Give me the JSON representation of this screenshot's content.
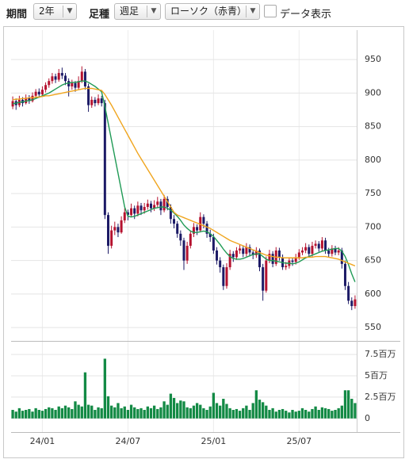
{
  "toolbar": {
    "period_label": "期間",
    "period": "2年",
    "ashi_label": "足種",
    "ashi": "週足",
    "chart_style": "ローソク（赤青）",
    "data_display": "データ表示"
  },
  "chart_data": [
    {
      "type": "candlestick",
      "categories": [
        null,
        null,
        null,
        null,
        null,
        null,
        null,
        null,
        null,
        "24/01",
        null,
        null,
        null,
        null,
        null,
        null,
        null,
        null,
        null,
        null,
        null,
        null,
        null,
        null,
        null,
        null,
        null,
        null,
        null,
        null,
        null,
        null,
        null,
        null,
        null,
        "24/07",
        null,
        null,
        null,
        null,
        null,
        null,
        null,
        null,
        null,
        null,
        null,
        null,
        null,
        null,
        null,
        null,
        null,
        null,
        null,
        null,
        null,
        null,
        null,
        null,
        null,
        "25/01",
        null,
        null,
        null,
        null,
        null,
        null,
        null,
        null,
        null,
        null,
        null,
        null,
        null,
        null,
        null,
        null,
        null,
        null,
        null,
        null,
        null,
        null,
        null,
        null,
        null,
        "25/07",
        null,
        null,
        null,
        null,
        null,
        null,
        null,
        null,
        null,
        null,
        null,
        null,
        null,
        null,
        null,
        null,
        null
      ],
      "open": [
        880,
        888,
        882,
        890,
        885,
        893,
        888,
        896,
        902,
        898,
        905,
        912,
        918,
        925,
        920,
        930,
        926,
        918,
        910,
        915,
        908,
        918,
        932,
        910,
        882,
        890,
        885,
        892,
        885,
        718,
        672,
        695,
        700,
        692,
        710,
        722,
        718,
        728,
        720,
        732,
        725,
        730,
        735,
        728,
        733,
        738,
        725,
        742,
        730,
        712,
        705,
        690,
        680,
        650,
        672,
        690,
        700,
        695,
        715,
        705,
        690,
        685,
        665,
        650,
        640,
        612,
        640,
        660,
        655,
        665,
        668,
        660,
        670,
        662,
        658,
        665,
        640,
        605,
        650,
        660,
        645,
        665,
        655,
        640,
        642,
        650,
        648,
        655,
        662,
        665,
        670,
        660,
        672,
        675,
        668,
        680,
        665,
        660,
        668,
        662,
        665,
        645,
        612,
        590,
        582
      ],
      "high": [
        895,
        892,
        896,
        894,
        898,
        897,
        901,
        906,
        907,
        910,
        916,
        922,
        930,
        929,
        936,
        938,
        930,
        922,
        920,
        918,
        925,
        940,
        936,
        914,
        895,
        894,
        898,
        896,
        890,
        722,
        702,
        708,
        705,
        716,
        728,
        726,
        735,
        732,
        738,
        736,
        736,
        741,
        739,
        740,
        745,
        742,
        748,
        746,
        734,
        718,
        709,
        695,
        684,
        678,
        695,
        706,
        704,
        722,
        719,
        709,
        696,
        690,
        670,
        655,
        644,
        646,
        666,
        664,
        670,
        674,
        672,
        676,
        674,
        666,
        670,
        668,
        645,
        656,
        666,
        664,
        670,
        669,
        659,
        648,
        655,
        654,
        660,
        667,
        670,
        676,
        674,
        678,
        680,
        679,
        685,
        684,
        669,
        673,
        672,
        670,
        669,
        650,
        618,
        595,
        598
      ],
      "low": [
        876,
        875,
        879,
        880,
        883,
        884,
        886,
        892,
        893,
        895,
        901,
        908,
        914,
        915,
        917,
        921,
        912,
        895,
        905,
        902,
        905,
        915,
        905,
        872,
        878,
        880,
        882,
        880,
        712,
        660,
        668,
        688,
        685,
        690,
        706,
        710,
        715,
        712,
        716,
        718,
        720,
        726,
        722,
        724,
        729,
        718,
        722,
        725,
        705,
        698,
        684,
        672,
        636,
        645,
        668,
        685,
        688,
        692,
        698,
        684,
        678,
        660,
        644,
        632,
        606,
        608,
        636,
        648,
        651,
        660,
        655,
        656,
        656,
        652,
        654,
        634,
        590,
        602,
        646,
        640,
        642,
        650,
        636,
        636,
        638,
        642,
        644,
        651,
        658,
        661,
        656,
        656,
        668,
        663,
        664,
        660,
        655,
        656,
        658,
        658,
        638,
        606,
        585,
        576,
        578
      ],
      "close": [
        888,
        882,
        890,
        885,
        893,
        888,
        896,
        902,
        898,
        905,
        912,
        918,
        925,
        920,
        930,
        926,
        918,
        910,
        915,
        908,
        918,
        932,
        910,
        882,
        890,
        885,
        892,
        885,
        718,
        672,
        695,
        700,
        692,
        710,
        722,
        718,
        728,
        720,
        732,
        725,
        730,
        735,
        728,
        733,
        738,
        725,
        742,
        730,
        712,
        705,
        690,
        680,
        650,
        672,
        690,
        700,
        695,
        715,
        705,
        690,
        685,
        665,
        650,
        640,
        612,
        640,
        660,
        655,
        665,
        668,
        660,
        670,
        662,
        658,
        665,
        640,
        605,
        650,
        660,
        645,
        665,
        655,
        640,
        642,
        650,
        648,
        655,
        662,
        665,
        670,
        660,
        672,
        675,
        668,
        680,
        665,
        660,
        668,
        662,
        665,
        645,
        612,
        590,
        582,
        592
      ],
      "up_color": "#b5122f",
      "down_color": "#1c1a66",
      "series": [
        {
          "color": "#1f9a55",
          "values": [
            884,
            885,
            886,
            887,
            888,
            889,
            890,
            892,
            894,
            896,
            898,
            900,
            903,
            906,
            909,
            912,
            914,
            915,
            916,
            916,
            917,
            918,
            918,
            916,
            913,
            910,
            906,
            902,
            880,
            855,
            830,
            805,
            780,
            755,
            730,
            716,
            715,
            716,
            718,
            720,
            722,
            724,
            726,
            728,
            729,
            730,
            730,
            728,
            725,
            721,
            716,
            710,
            703,
            698,
            694,
            692,
            692,
            693,
            694,
            693,
            690,
            686,
            680,
            674,
            667,
            661,
            656,
            653,
            652,
            652,
            653,
            655,
            657,
            659,
            660,
            660,
            656,
            652,
            650,
            650,
            649,
            648,
            647,
            646,
            646,
            645,
            646,
            648,
            651,
            654,
            656,
            658,
            660,
            662,
            664,
            665,
            666,
            667,
            668,
            668,
            664,
            656,
            644,
            630,
            618
          ]
        },
        {
          "color": "#f0a51e",
          "values": [
            890,
            891,
            891,
            892,
            892,
            893,
            893,
            894,
            894,
            895,
            896,
            896,
            897,
            898,
            899,
            900,
            901,
            902,
            903,
            904,
            905,
            906,
            907,
            907,
            907,
            906,
            905,
            904,
            898,
            890,
            882,
            873,
            864,
            855,
            846,
            837,
            828,
            819,
            810,
            802,
            794,
            786,
            778,
            770,
            762,
            754,
            746,
            738,
            730,
            722,
            718,
            716,
            714,
            712,
            710,
            708,
            706,
            704,
            702,
            700,
            698,
            695,
            692,
            689,
            686,
            683,
            680,
            678,
            676,
            674,
            672,
            670,
            668,
            666,
            664,
            662,
            660,
            658,
            657,
            656,
            655,
            655,
            654,
            654,
            654,
            654,
            654,
            654,
            654,
            655,
            655,
            655,
            656,
            656,
            656,
            656,
            655,
            654,
            653,
            652,
            650,
            648,
            646,
            644,
            642
          ]
        }
      ],
      "ylim": [
        530,
        994
      ],
      "yticks": [
        550,
        600,
        650,
        700,
        750,
        800,
        850,
        900,
        950
      ],
      "grid": true
    },
    {
      "type": "bar",
      "values": [
        1.0,
        0.8,
        1.2,
        0.9,
        1.0,
        1.1,
        0.8,
        1.2,
        1.0,
        0.9,
        1.1,
        1.3,
        1.2,
        1.0,
        1.4,
        1.2,
        1.5,
        1.3,
        1.1,
        2.0,
        1.6,
        1.4,
        5.4,
        1.6,
        1.5,
        1.0,
        1.3,
        1.2,
        7.0,
        2.6,
        1.5,
        1.3,
        1.8,
        1.2,
        1.4,
        1.0,
        1.6,
        1.3,
        1.1,
        1.2,
        1.0,
        1.4,
        1.2,
        1.5,
        1.1,
        1.3,
        2.0,
        1.6,
        2.9,
        2.4,
        1.8,
        2.1,
        2.0,
        1.3,
        1.2,
        1.5,
        1.8,
        1.6,
        1.2,
        1.0,
        1.4,
        3.0,
        1.8,
        1.5,
        2.3,
        1.7,
        1.2,
        1.0,
        1.1,
        0.9,
        1.2,
        1.5,
        1.0,
        1.8,
        3.3,
        2.2,
        1.9,
        1.5,
        1.0,
        1.2,
        0.8,
        1.0,
        1.1,
        0.9,
        0.7,
        1.0,
        0.8,
        0.9,
        1.2,
        1.0,
        0.8,
        1.1,
        1.4,
        1.0,
        1.3,
        1.2,
        1.1,
        0.9,
        1.0,
        1.2,
        1.5,
        3.3,
        3.3,
        2.3,
        1.8
      ],
      "color": "#138a45",
      "ylim": [
        -1.6,
        8.9
      ],
      "yticks": [
        0,
        {
          "value": 2.5,
          "label": "2.5百万"
        },
        {
          "value": 5,
          "label": "5百万"
        },
        {
          "value": 7.5,
          "label": "7.5百万"
        }
      ],
      "grid": true
    }
  ]
}
